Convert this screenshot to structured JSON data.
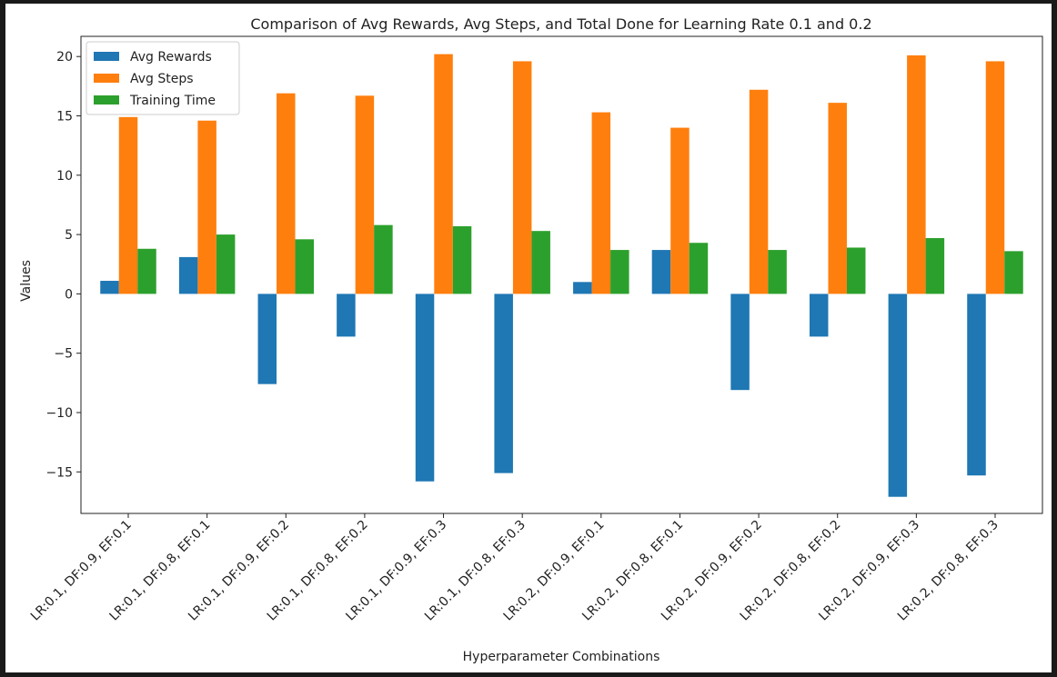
{
  "chart_data": {
    "type": "bar",
    "title": "Comparison of Avg Rewards, Avg Steps, and Total Done for Learning Rate 0.1 and 0.2",
    "xlabel": "Hyperparameter Combinations",
    "ylabel": "Values",
    "ylim": [
      -18.5,
      21.7
    ],
    "yticks": [
      -15,
      -10,
      -5,
      0,
      5,
      10,
      15,
      20
    ],
    "ytick_labels": [
      "−15",
      "−10",
      "−5",
      "0",
      "5",
      "10",
      "15",
      "20"
    ],
    "grid": false,
    "legend_position": "top-left",
    "categories": [
      "LR:0.1, DF:0.9, EF:0.1",
      "LR:0.1, DF:0.8, EF:0.1",
      "LR:0.1, DF:0.9, EF:0.2",
      "LR:0.1, DF:0.8, EF:0.2",
      "LR:0.1, DF:0.9, EF:0.3",
      "LR:0.1, DF:0.8, EF:0.3",
      "LR:0.2, DF:0.9, EF:0.1",
      "LR:0.2, DF:0.8, EF:0.1",
      "LR:0.2, DF:0.9, EF:0.2",
      "LR:0.2, DF:0.8, EF:0.2",
      "LR:0.2, DF:0.9, EF:0.3",
      "LR:0.2, DF:0.8, EF:0.3"
    ],
    "series": [
      {
        "name": "Avg Rewards",
        "color": "#1f77b4",
        "values": [
          1.1,
          3.1,
          -7.6,
          -3.6,
          -15.8,
          -15.1,
          1.0,
          3.7,
          -8.1,
          -3.6,
          -17.1,
          -15.3
        ]
      },
      {
        "name": "Avg Steps",
        "color": "#ff7f0e",
        "values": [
          14.9,
          14.6,
          16.9,
          16.7,
          20.2,
          19.6,
          15.3,
          14.0,
          17.2,
          16.1,
          20.1,
          19.6
        ]
      },
      {
        "name": "Training Time",
        "color": "#2ca02c",
        "values": [
          3.8,
          5.0,
          4.6,
          5.8,
          5.7,
          5.3,
          3.7,
          4.3,
          3.7,
          3.9,
          4.7,
          3.6
        ]
      }
    ]
  }
}
